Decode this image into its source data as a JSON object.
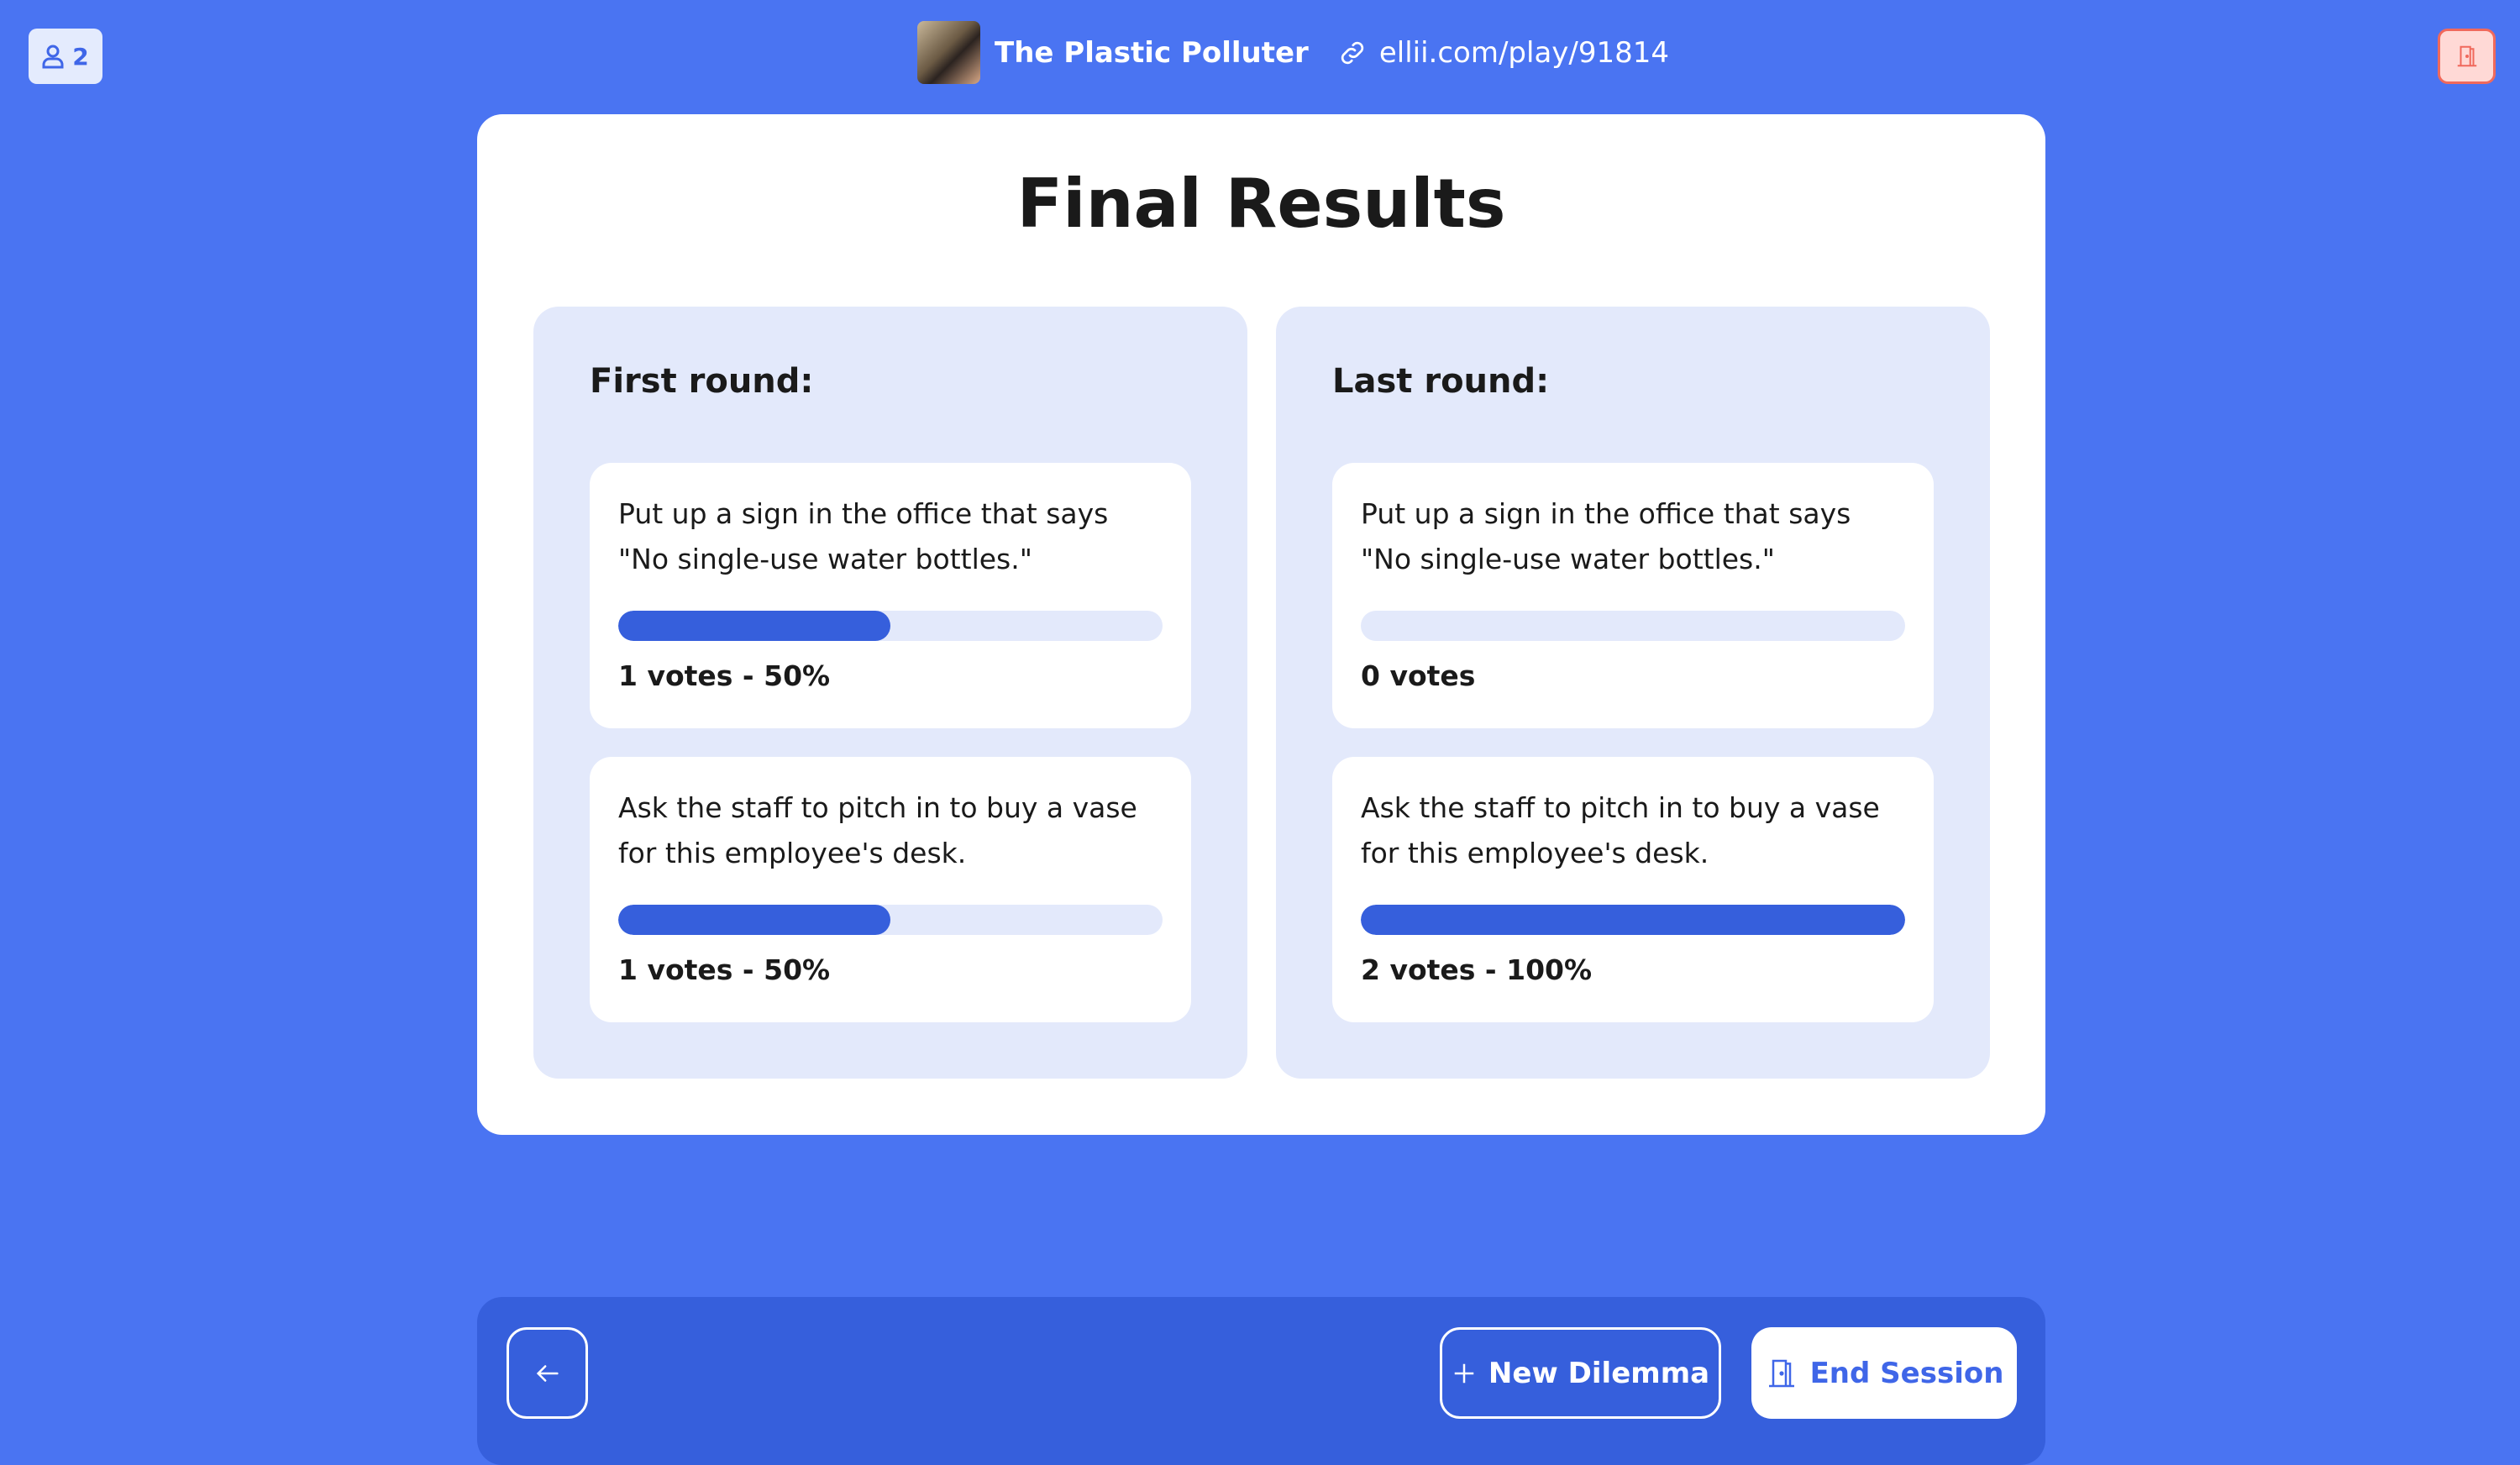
{
  "header": {
    "participants": "2",
    "game_title": "The Plastic Polluter",
    "url": "ellii.com/play/91814"
  },
  "colors": {
    "background": "#4a74f2",
    "accent": "#365fdc",
    "exit": "#f0695c"
  },
  "main": {
    "title": "Final Results",
    "rounds": [
      {
        "label": "First round:",
        "options": [
          {
            "text": "Put up a sign in the office that says \"No single-use water bottles.\"",
            "percent": 50,
            "votes_label": "1 votes - 50%"
          },
          {
            "text": "Ask the staff to pitch in to buy a vase for this employee's desk.",
            "percent": 50,
            "votes_label": "1 votes - 50%"
          }
        ]
      },
      {
        "label": "Last round:",
        "options": [
          {
            "text": "Put up a sign in the office that says \"No single-use water bottles.\"",
            "percent": 0,
            "votes_label": "0 votes"
          },
          {
            "text": "Ask the staff to pitch in to buy a vase for this employee's desk.",
            "percent": 100,
            "votes_label": "2 votes - 100%"
          }
        ]
      }
    ]
  },
  "footer": {
    "new_dilemma": "New Dilemma",
    "end_session": "End Session"
  }
}
